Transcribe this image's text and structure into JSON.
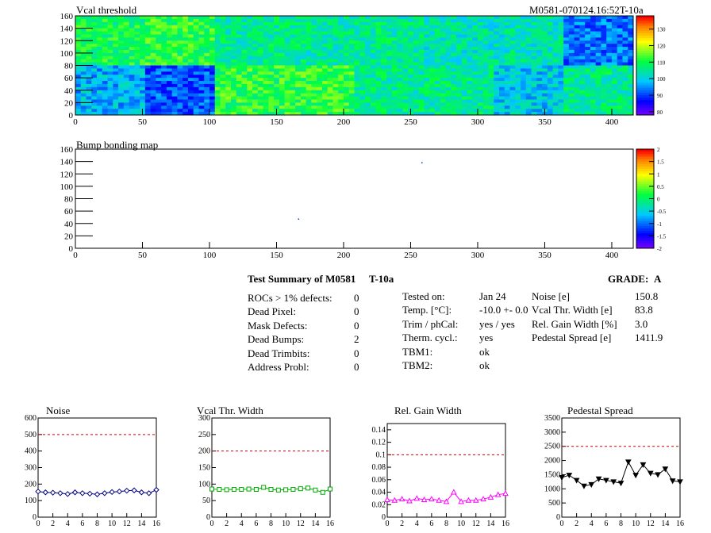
{
  "header": {
    "map_title": "Vcal threshold",
    "module_id": "M0581-070124.16:52T-10a",
    "bump_title": "Bump bonding map"
  },
  "colors": {
    "high": "#ff2000",
    "mid_high": "#ffff00",
    "mid": "#00ff40",
    "mid_low": "#00c0ff",
    "low": "#0000ff",
    "lowest": "#8000ff",
    "noise_line": "#000080",
    "vcal_line": "#00aa00",
    "gain_line": "#ff00ff",
    "ped_line": "#000000",
    "limit_line": "#cc0000"
  },
  "chart_data": [
    {
      "type": "heatmap",
      "title": "Vcal threshold",
      "x_ticks": [
        "0",
        "50",
        "100",
        "150",
        "200",
        "250",
        "300",
        "350",
        "400"
      ],
      "y_ticks": [
        "0",
        "20",
        "40",
        "60",
        "80",
        "100",
        "120",
        "140",
        "160"
      ],
      "xlim": [
        0,
        416
      ],
      "ylim": [
        0,
        160
      ],
      "z_ticks": [
        "80",
        "90",
        "100",
        "110",
        "120",
        "130"
      ],
      "zlim": [
        78,
        138
      ],
      "roc_grid": {
        "cols": 8,
        "rows": 2
      },
      "roc_mean_top": [
        110,
        112,
        106,
        106,
        106,
        104,
        104,
        94
      ],
      "roc_mean_bottom": [
        98,
        92,
        112,
        112,
        106,
        106,
        100,
        106
      ]
    },
    {
      "type": "heatmap",
      "title": "Bump bonding map",
      "x_ticks": [
        "0",
        "50",
        "100",
        "150",
        "200",
        "250",
        "300",
        "350",
        "400"
      ],
      "y_ticks": [
        "0",
        "20",
        "40",
        "60",
        "80",
        "100",
        "120",
        "140",
        "160"
      ],
      "xlim": [
        0,
        416
      ],
      "ylim": [
        0,
        160
      ],
      "z_ticks": [
        "2",
        "1.5",
        "1",
        "0.5",
        "0",
        "-0.5",
        "-1",
        "-1.5",
        "-2"
      ],
      "zlim": [
        -2,
        2
      ],
      "defect_points": [
        {
          "x": 258,
          "y": 139
        },
        {
          "x": 166,
          "y": 48
        }
      ]
    },
    {
      "type": "scatter",
      "title": "Noise",
      "x": [
        0,
        1,
        2,
        3,
        4,
        5,
        6,
        7,
        8,
        9,
        10,
        11,
        12,
        13,
        14,
        15,
        16
      ],
      "values": [
        155,
        150,
        148,
        145,
        140,
        150,
        145,
        142,
        138,
        145,
        152,
        155,
        160,
        162,
        150,
        145,
        165
      ],
      "xlim": [
        0,
        16
      ],
      "ylim": [
        0,
        600
      ],
      "y_ticks": [
        "0",
        "100",
        "200",
        "300",
        "400",
        "500",
        "600"
      ],
      "x_ticks": [
        "0",
        "2",
        "4",
        "6",
        "8",
        "10",
        "12",
        "14",
        "16"
      ],
      "limit": 500,
      "marker": "diamond"
    },
    {
      "type": "scatter",
      "title": "Vcal Thr. Width",
      "x": [
        0,
        1,
        2,
        3,
        4,
        5,
        6,
        7,
        8,
        9,
        10,
        11,
        12,
        13,
        14,
        15,
        16
      ],
      "values": [
        85,
        84,
        83,
        84,
        84,
        85,
        84,
        90,
        84,
        82,
        83,
        84,
        86,
        88,
        82,
        75,
        85
      ],
      "xlim": [
        0,
        16
      ],
      "ylim": [
        0,
        300
      ],
      "y_ticks": [
        "0",
        "50",
        "100",
        "150",
        "200",
        "250",
        "300"
      ],
      "x_ticks": [
        "0",
        "2",
        "4",
        "6",
        "8",
        "10",
        "12",
        "14",
        "16"
      ],
      "limit": 200,
      "marker": "square"
    },
    {
      "type": "scatter",
      "title": "Rel. Gain Width",
      "x": [
        0,
        1,
        2,
        3,
        4,
        5,
        6,
        7,
        8,
        9,
        10,
        11,
        12,
        13,
        14,
        15,
        16
      ],
      "values": [
        0.028,
        0.027,
        0.029,
        0.026,
        0.03,
        0.028,
        0.029,
        0.027,
        0.025,
        0.04,
        0.025,
        0.027,
        0.027,
        0.029,
        0.032,
        0.036,
        0.038
      ],
      "xlim": [
        0,
        16
      ],
      "ylim": [
        0,
        0.15
      ],
      "y_ticks": [
        "0",
        "0.02",
        "0.04",
        "0.06",
        "0.08",
        "0.1",
        "0.12",
        "0.14"
      ],
      "y_tick_values": [
        0,
        0.02,
        0.04,
        0.06,
        0.08,
        0.1,
        0.12,
        0.14
      ],
      "x_ticks": [
        "0",
        "2",
        "4",
        "6",
        "8",
        "10",
        "12",
        "14",
        "16"
      ],
      "limit": 0.1,
      "marker": "triangle"
    },
    {
      "type": "scatter",
      "title": "Pedestal Spread",
      "x": [
        0,
        1,
        2,
        3,
        4,
        5,
        6,
        7,
        8,
        9,
        10,
        11,
        12,
        13,
        14,
        15,
        16
      ],
      "values": [
        1400,
        1480,
        1300,
        1100,
        1150,
        1350,
        1300,
        1250,
        1200,
        1950,
        1480,
        1850,
        1550,
        1500,
        1700,
        1280,
        1250
      ],
      "xlim": [
        0,
        16
      ],
      "ylim": [
        0,
        3500
      ],
      "y_ticks": [
        "0",
        "500",
        "1000",
        "1500",
        "2000",
        "2500",
        "3000",
        "3500"
      ],
      "x_ticks": [
        "0",
        "2",
        "4",
        "6",
        "8",
        "10",
        "12",
        "14",
        "16"
      ],
      "limit": 2500,
      "marker": "filled-triangle"
    }
  ],
  "summary": {
    "title": "Test Summary of M0581",
    "temp_tag": "T-10a",
    "grade_label": "GRADE:",
    "grade_value": "A",
    "col1": [
      {
        "label": "ROCs > 1% defects:",
        "value": "0"
      },
      {
        "label": "Dead Pixel:",
        "value": "0"
      },
      {
        "label": "Mask Defects:",
        "value": "0"
      },
      {
        "label": "Dead Bumps:",
        "value": "2"
      },
      {
        "label": "Dead Trimbits:",
        "value": "0"
      },
      {
        "label": "Address Probl:",
        "value": "0"
      }
    ],
    "col2": [
      {
        "label": "Tested on:",
        "value": "Jan 24"
      },
      {
        "label": "Temp. [°C]:",
        "value": "-10.0 +- 0.0"
      },
      {
        "label": "Trim / phCal:",
        "value": "yes / yes"
      },
      {
        "label": "Therm. cycl.:",
        "value": "yes"
      },
      {
        "label": "TBM1:",
        "value": "ok"
      },
      {
        "label": "TBM2:",
        "value": "ok"
      }
    ],
    "col3": [
      {
        "label": "Noise [e]",
        "value": "150.8"
      },
      {
        "label": "Vcal Thr. Width [e]",
        "value": "83.8"
      },
      {
        "label": "Rel. Gain Width [%]",
        "value": "3.0"
      },
      {
        "label": "Pedestal Spread [e]",
        "value": "1411.9"
      }
    ]
  }
}
